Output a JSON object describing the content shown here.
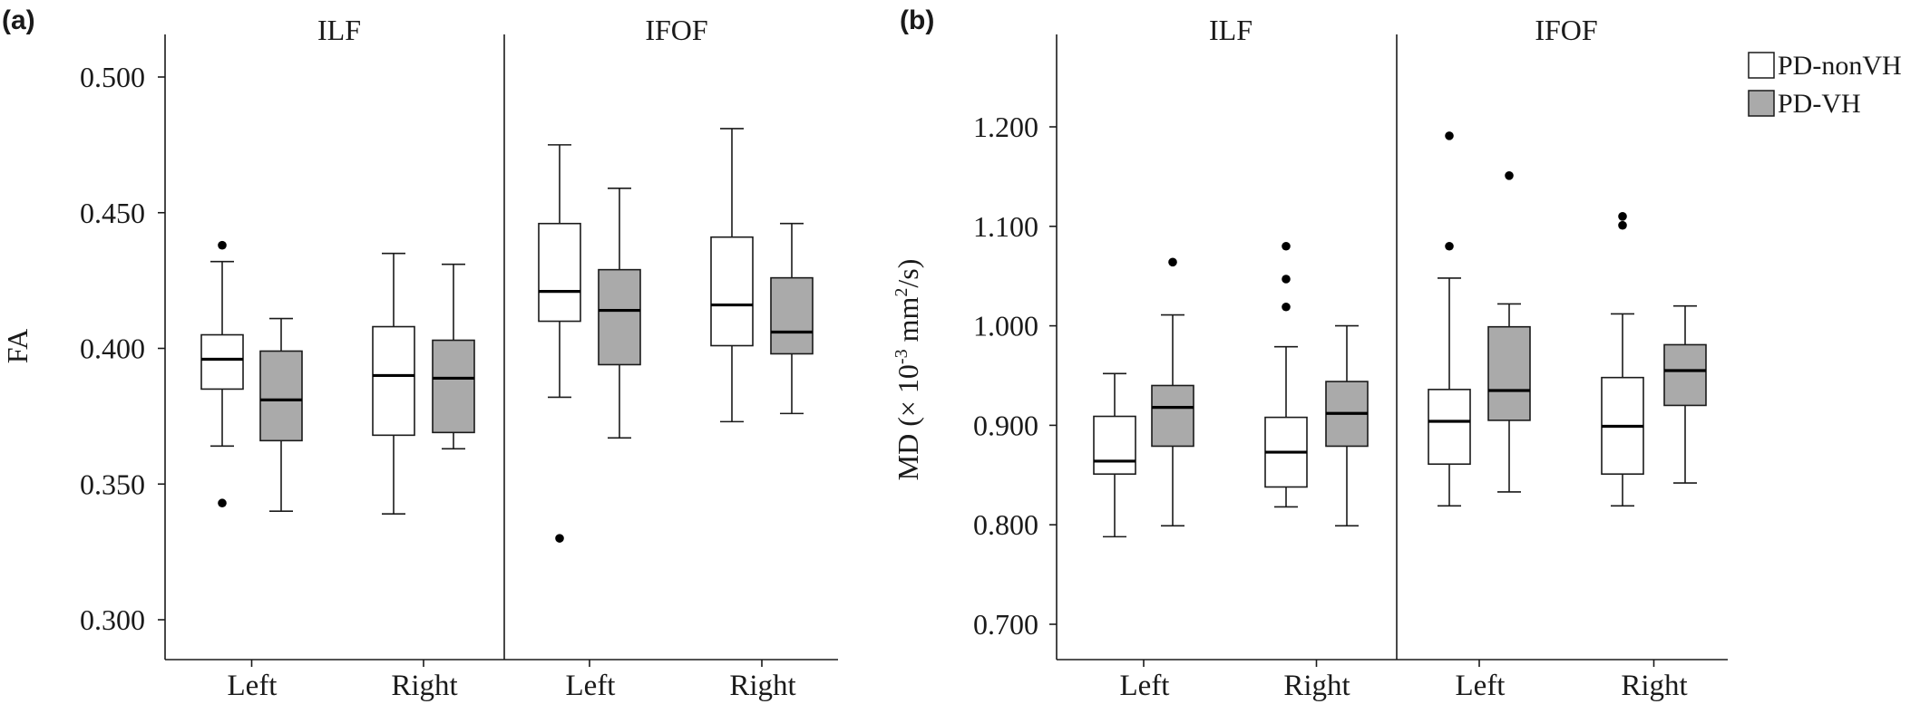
{
  "colors": {
    "PD-nonVH": "#ffffff",
    "PD-VH": "#aaaaaa",
    "stroke": "#1a1a1a",
    "median": "#000000"
  },
  "legend": {
    "placement": "top-right",
    "items": [
      {
        "name": "PD-nonVH",
        "color": "#ffffff"
      },
      {
        "name": "PD-VH",
        "color": "#aaaaaa"
      }
    ]
  },
  "chart_data": [
    {
      "type": "box",
      "panel": "(a)",
      "ylabel": "FA",
      "ylim": [
        0.29,
        0.51
      ],
      "yticks": [
        0.3,
        0.35,
        0.4,
        0.45,
        0.5
      ],
      "ytick_labels": [
        "0.300",
        "0.350",
        "0.400",
        "0.450",
        "0.500"
      ],
      "grid": false,
      "groups": [
        "ILF",
        "IFOF"
      ],
      "categories": [
        "Left",
        "Right",
        "Left",
        "Right"
      ],
      "series": [
        {
          "name": "PD-nonVH",
          "boxes": [
            {
              "group": "ILF",
              "side": "Left",
              "whisker_low": 0.364,
              "q1": 0.385,
              "median": 0.396,
              "q3": 0.405,
              "whisker_high": 0.432,
              "outliers": [
                0.438,
                0.343
              ]
            },
            {
              "group": "ILF",
              "side": "Right",
              "whisker_low": 0.339,
              "q1": 0.368,
              "median": 0.39,
              "q3": 0.408,
              "whisker_high": 0.435,
              "outliers": []
            },
            {
              "group": "IFOF",
              "side": "Left",
              "whisker_low": 0.382,
              "q1": 0.41,
              "median": 0.421,
              "q3": 0.446,
              "whisker_high": 0.475,
              "outliers": [
                0.33
              ]
            },
            {
              "group": "IFOF",
              "side": "Right",
              "whisker_low": 0.373,
              "q1": 0.401,
              "median": 0.416,
              "q3": 0.441,
              "whisker_high": 0.481,
              "outliers": []
            }
          ]
        },
        {
          "name": "PD-VH",
          "boxes": [
            {
              "group": "ILF",
              "side": "Left",
              "whisker_low": 0.34,
              "q1": 0.366,
              "median": 0.381,
              "q3": 0.399,
              "whisker_high": 0.411,
              "outliers": []
            },
            {
              "group": "ILF",
              "side": "Right",
              "whisker_low": 0.363,
              "q1": 0.369,
              "median": 0.389,
              "q3": 0.403,
              "whisker_high": 0.431,
              "outliers": []
            },
            {
              "group": "IFOF",
              "side": "Left",
              "whisker_low": 0.367,
              "q1": 0.394,
              "median": 0.414,
              "q3": 0.429,
              "whisker_high": 0.459,
              "outliers": []
            },
            {
              "group": "IFOF",
              "side": "Right",
              "whisker_low": 0.376,
              "q1": 0.398,
              "median": 0.406,
              "q3": 0.426,
              "whisker_high": 0.446,
              "outliers": []
            }
          ]
        }
      ]
    },
    {
      "type": "box",
      "panel": "(b)",
      "ylabel": "MD (× 10-3 mm2/s)",
      "ylabel_parts": {
        "prefix": "MD (×  10",
        "exp1": "-3",
        "mid": " mm",
        "exp2": "2",
        "suffix": "/s)"
      },
      "ylim": [
        0.685,
        1.26
      ],
      "yticks": [
        0.7,
        0.8,
        0.9,
        1.0,
        1.1,
        1.2
      ],
      "ytick_labels": [
        "0.700",
        "0.800",
        "0.900",
        "1.000",
        "1.100",
        "1.200"
      ],
      "grid": false,
      "groups": [
        "ILF",
        "IFOF"
      ],
      "categories": [
        "Left",
        "Right",
        "Left",
        "Right"
      ],
      "series": [
        {
          "name": "PD-nonVH",
          "boxes": [
            {
              "group": "ILF",
              "side": "Left",
              "whisker_low": 0.788,
              "q1": 0.851,
              "median": 0.864,
              "q3": 0.909,
              "whisker_high": 0.952,
              "outliers": []
            },
            {
              "group": "ILF",
              "side": "Right",
              "whisker_low": 0.818,
              "q1": 0.838,
              "median": 0.873,
              "q3": 0.908,
              "whisker_high": 0.979,
              "outliers": [
                1.08,
                1.047,
                1.019
              ]
            },
            {
              "group": "IFOF",
              "side": "Left",
              "whisker_low": 0.819,
              "q1": 0.861,
              "median": 0.904,
              "q3": 0.936,
              "whisker_high": 1.048,
              "outliers": [
                1.191,
                1.08
              ]
            },
            {
              "group": "IFOF",
              "side": "Right",
              "whisker_low": 0.819,
              "q1": 0.851,
              "median": 0.899,
              "q3": 0.948,
              "whisker_high": 1.012,
              "outliers": [
                1.11,
                1.101
              ]
            }
          ]
        },
        {
          "name": "PD-VH",
          "boxes": [
            {
              "group": "ILF",
              "side": "Left",
              "whisker_low": 0.799,
              "q1": 0.879,
              "median": 0.918,
              "q3": 0.94,
              "whisker_high": 1.011,
              "outliers": [
                1.064
              ]
            },
            {
              "group": "ILF",
              "side": "Right",
              "whisker_low": 0.799,
              "q1": 0.879,
              "median": 0.912,
              "q3": 0.944,
              "whisker_high": 1.0,
              "outliers": []
            },
            {
              "group": "IFOF",
              "side": "Left",
              "whisker_low": 0.833,
              "q1": 0.905,
              "median": 0.935,
              "q3": 0.999,
              "whisker_high": 1.022,
              "outliers": [
                1.151
              ]
            },
            {
              "group": "IFOF",
              "side": "Right",
              "whisker_low": 0.842,
              "q1": 0.92,
              "median": 0.955,
              "q3": 0.981,
              "whisker_high": 1.02,
              "outliers": []
            }
          ]
        }
      ]
    }
  ]
}
